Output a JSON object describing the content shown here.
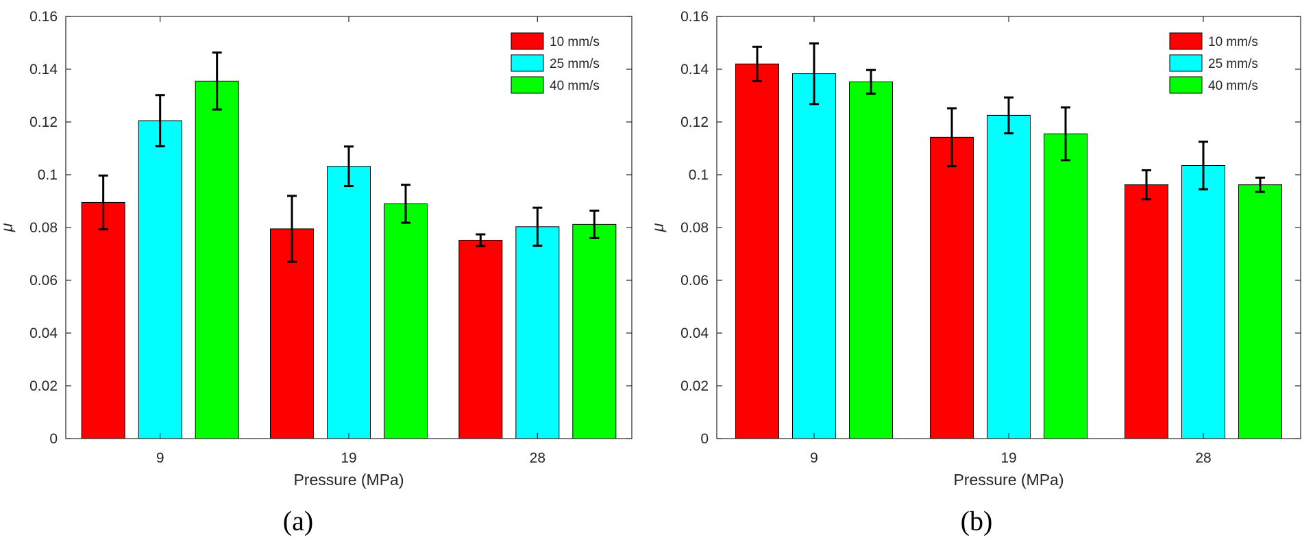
{
  "chart_data": [
    {
      "type": "bar",
      "panel_label": "(a)",
      "categories": [
        "9",
        "19",
        "28"
      ],
      "xlabel": "Pressure (MPa)",
      "ylabel": "μ",
      "ylim": [
        0,
        0.16
      ],
      "yticks": [
        0,
        0.02,
        0.04,
        0.06,
        0.08,
        0.1,
        0.12,
        0.14,
        0.16
      ],
      "ytick_labels": [
        "0",
        "0.02",
        "0.04",
        "0.06",
        "0.08",
        "0.1",
        "0.12",
        "0.14",
        "0.16"
      ],
      "grid": false,
      "legend_position": "top-right",
      "series": [
        {
          "name": "10 mm/s",
          "color": "#ff0000",
          "values": [
            0.0895,
            0.0795,
            0.0752
          ],
          "errors": [
            0.0102,
            0.0125,
            0.0022
          ]
        },
        {
          "name": "25 mm/s",
          "color": "#00ffff",
          "values": [
            0.1205,
            0.1032,
            0.0803
          ],
          "errors": [
            0.0097,
            0.0075,
            0.0072
          ]
        },
        {
          "name": "40 mm/s",
          "color": "#00ff00",
          "values": [
            0.1355,
            0.089,
            0.0812
          ],
          "errors": [
            0.0108,
            0.0072,
            0.0052
          ]
        }
      ]
    },
    {
      "type": "bar",
      "panel_label": "(b)",
      "categories": [
        "9",
        "19",
        "28"
      ],
      "xlabel": "Pressure (MPa)",
      "ylabel": "μ",
      "ylim": [
        0,
        0.16
      ],
      "yticks": [
        0,
        0.02,
        0.04,
        0.06,
        0.08,
        0.1,
        0.12,
        0.14,
        0.16
      ],
      "ytick_labels": [
        "0",
        "0.02",
        "0.04",
        "0.06",
        "0.08",
        "0.1",
        "0.12",
        "0.14",
        "0.16"
      ],
      "grid": false,
      "legend_position": "top-right",
      "series": [
        {
          "name": "10 mm/s",
          "color": "#ff0000",
          "values": [
            0.142,
            0.1142,
            0.0962
          ],
          "errors": [
            0.0065,
            0.011,
            0.0055
          ]
        },
        {
          "name": "25 mm/s",
          "color": "#00ffff",
          "values": [
            0.1383,
            0.1225,
            0.1035
          ],
          "errors": [
            0.0115,
            0.0068,
            0.009
          ]
        },
        {
          "name": "40 mm/s",
          "color": "#00ff00",
          "values": [
            0.1352,
            0.1155,
            0.0962
          ],
          "errors": [
            0.0045,
            0.01,
            0.0027
          ]
        }
      ]
    }
  ]
}
